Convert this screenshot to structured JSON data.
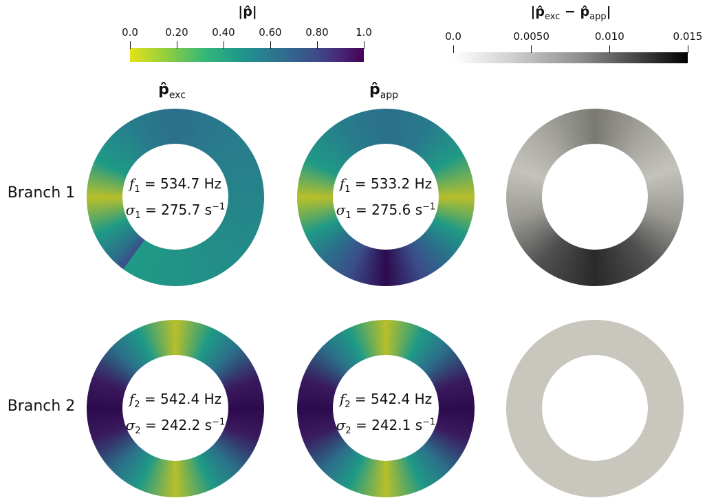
{
  "colorbars": {
    "magnitude": {
      "title": "|p̂|",
      "ticks": [
        "0.0",
        "0.20",
        "0.40",
        "0.60",
        "0.80",
        "1.0"
      ],
      "colormap": "viridis-reversed",
      "range": [
        0.0,
        1.0
      ]
    },
    "difference": {
      "title": "|p̂",
      "title_sub1": "exc",
      "title_mid": " − p̂",
      "title_sub2": "app",
      "title_end": "|",
      "ticks": [
        "0.0",
        "0.0050",
        "0.010",
        "0.015"
      ],
      "colormap": "grayscale",
      "range": [
        0.0,
        0.015
      ]
    }
  },
  "columns": {
    "exc": {
      "base": "p̂",
      "sub": "exc"
    },
    "app": {
      "base": "p̂",
      "sub": "app"
    }
  },
  "branches": [
    {
      "label": "Branch 1",
      "exc": {
        "f_sym": "f",
        "f_sub": "1",
        "f_val": "= 534.7 Hz",
        "s_sym": "σ",
        "s_sub": "1",
        "s_val": "= 275.7 s",
        "s_sup": "−1"
      },
      "app": {
        "f_sym": "f",
        "f_sub": "1",
        "f_val": "= 533.2 Hz",
        "s_sym": "σ",
        "s_sub": "1",
        "s_val": "= 275.6 s",
        "s_sup": "−1"
      }
    },
    {
      "label": "Branch 2",
      "exc": {
        "f_sym": "f",
        "f_sub": "2",
        "f_val": "= 542.4 Hz",
        "s_sym": "σ",
        "s_sub": "2",
        "s_val": "= 242.2 s",
        "s_sup": "−1"
      },
      "app": {
        "f_sym": "f",
        "f_sub": "2",
        "f_val": "= 542.4 Hz",
        "s_sym": "σ",
        "s_sub": "2",
        "s_val": "= 242.1 s",
        "s_sup": "−1"
      }
    }
  ],
  "colors": {
    "yellow": "#d4c01a",
    "green": "#1f9a86",
    "teal": "#2b6f8a",
    "purple": "#3a1a5e",
    "dark_purple": "#2d0a4e",
    "light_gray": "#c8c6bd",
    "dark_gray": "#2a2a2a"
  }
}
